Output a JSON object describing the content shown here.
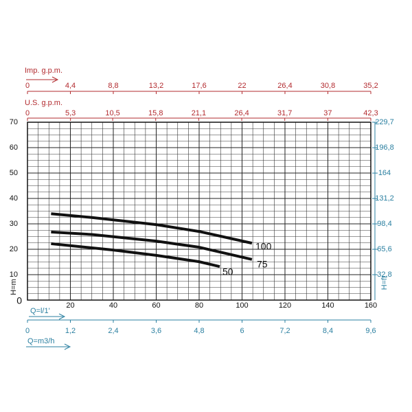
{
  "chart_data": {
    "type": "line",
    "x_label": "Q=l/1'",
    "y_label": "H=m",
    "xlim": [
      0,
      160
    ],
    "xticks": [
      0,
      20,
      40,
      60,
      80,
      100,
      120,
      140,
      160
    ],
    "ylim": [
      0,
      70
    ],
    "yticks": [
      0,
      10,
      20,
      30,
      40,
      50,
      60,
      70
    ],
    "grid": true,
    "series": [
      {
        "name": "100",
        "color": "#111111",
        "x": [
          11,
          30,
          60,
          80,
          104.6
        ],
        "values": [
          34,
          32.5,
          29.7,
          27,
          22.4
        ]
      },
      {
        "name": "75",
        "color": "#111111",
        "x": [
          11,
          30,
          60,
          80,
          104.6
        ],
        "values": [
          26.8,
          25.8,
          23.2,
          20.8,
          16
        ]
      },
      {
        "name": "50",
        "color": "#111111",
        "x": [
          11,
          40,
          60,
          80,
          89.6
        ],
        "values": [
          22.2,
          19.7,
          17.6,
          15.1,
          13.2
        ]
      }
    ],
    "imp_axis": {
      "label": "Imp. g.p.m.",
      "color": "#b22a2e",
      "lim": [
        0,
        35.2
      ],
      "ticks": [
        0,
        {
          "value": 4.4,
          "label": "4,4"
        },
        {
          "value": 8.8,
          "label": "8,8"
        },
        {
          "value": 13.2,
          "label": "13,2"
        },
        {
          "value": 17.6,
          "label": "17,6"
        },
        22,
        {
          "value": 26.4,
          "label": "26,4"
        },
        {
          "value": 30.8,
          "label": "30,8"
        },
        {
          "value": 35.2,
          "label": "35,2"
        }
      ]
    },
    "us_axis": {
      "label": "U.S. g.p.m.",
      "color": "#b22a2e",
      "lim": [
        0,
        42.3
      ],
      "ticks": [
        0,
        {
          "value": 5.3,
          "label": "5,3"
        },
        {
          "value": 10.5,
          "label": "10,5"
        },
        {
          "value": 15.8,
          "label": "15,8"
        },
        {
          "value": 21.1,
          "label": "21,1"
        },
        {
          "value": 26.4,
          "label": "26,4"
        },
        {
          "value": 31.7,
          "label": "31,7"
        },
        37,
        {
          "value": 42.3,
          "label": "42,3"
        }
      ]
    },
    "ft_axis": {
      "label": "H=ft",
      "color": "#2a7fa0",
      "lim": [
        0,
        229.7
      ],
      "ticks": [
        {
          "value": 32.8,
          "label": "32,8"
        },
        {
          "value": 65.6,
          "label": "65,6"
        },
        {
          "value": 98.4,
          "label": "98,4"
        },
        {
          "value": 131.2,
          "label": "131,2"
        },
        164,
        {
          "value": 196.8,
          "label": "196,8"
        },
        {
          "value": 229.7,
          "label": "229,7"
        }
      ]
    },
    "m3h_axis": {
      "label": "Q=m3/h",
      "color": "#2a7fa0",
      "lim": [
        0,
        9.6
      ],
      "ticks": [
        0,
        {
          "value": 1.2,
          "label": "1,2"
        },
        {
          "value": 2.4,
          "label": "2,4"
        },
        {
          "value": 3.6,
          "label": "3,6"
        },
        {
          "value": 4.8,
          "label": "4,8"
        },
        6,
        {
          "value": 7.2,
          "label": "7,2"
        },
        {
          "value": 8.4,
          "label": "8,4"
        },
        {
          "value": 9.6,
          "label": "9,6"
        }
      ]
    }
  }
}
